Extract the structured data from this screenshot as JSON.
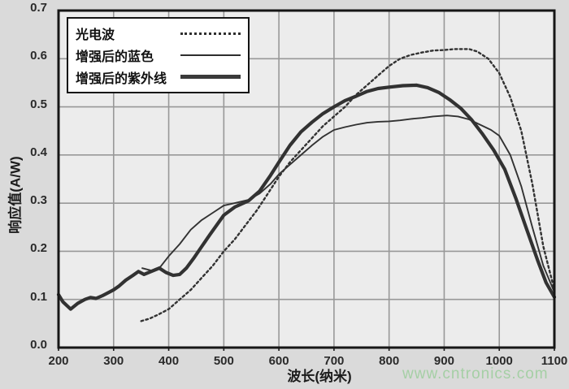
{
  "watermark": {
    "text": "www.cntronics.com",
    "color": "#a5cfa5"
  },
  "colors": {
    "page_bg": "#dadada",
    "plot_bg": "#ececec",
    "grid": "#989898",
    "frame": "#161616",
    "line": "#323232",
    "tick_text": "#2a2a2a"
  },
  "chart_data": {
    "type": "line",
    "title": "",
    "xlabel": "波长(纳米)",
    "ylabel": "响应值(A/W)",
    "xlim": [
      200,
      1100
    ],
    "ylim": [
      0,
      0.7
    ],
    "xticks": [
      200,
      300,
      400,
      500,
      600,
      700,
      800,
      900,
      1000,
      1100
    ],
    "yticks": [
      0.0,
      0.1,
      0.2,
      0.3,
      0.4,
      0.5,
      0.6,
      0.7
    ],
    "grid": true,
    "legend_position": "top-left",
    "series": [
      {
        "name": "光电波",
        "style": "dotted",
        "points": [
          [
            350,
            0.055
          ],
          [
            365,
            0.06
          ],
          [
            380,
            0.068
          ],
          [
            400,
            0.08
          ],
          [
            420,
            0.1
          ],
          [
            440,
            0.12
          ],
          [
            460,
            0.145
          ],
          [
            480,
            0.17
          ],
          [
            500,
            0.2
          ],
          [
            520,
            0.225
          ],
          [
            540,
            0.255
          ],
          [
            560,
            0.285
          ],
          [
            580,
            0.32
          ],
          [
            600,
            0.355
          ],
          [
            620,
            0.385
          ],
          [
            640,
            0.41
          ],
          [
            660,
            0.435
          ],
          [
            680,
            0.46
          ],
          [
            700,
            0.48
          ],
          [
            720,
            0.5
          ],
          [
            740,
            0.525
          ],
          [
            760,
            0.545
          ],
          [
            780,
            0.565
          ],
          [
            800,
            0.585
          ],
          [
            820,
            0.6
          ],
          [
            840,
            0.608
          ],
          [
            860,
            0.613
          ],
          [
            880,
            0.617
          ],
          [
            900,
            0.618
          ],
          [
            920,
            0.62
          ],
          [
            945,
            0.62
          ],
          [
            960,
            0.615
          ],
          [
            980,
            0.6
          ],
          [
            1000,
            0.57
          ],
          [
            1020,
            0.52
          ],
          [
            1040,
            0.45
          ],
          [
            1060,
            0.34
          ],
          [
            1080,
            0.21
          ],
          [
            1100,
            0.12
          ]
        ]
      },
      {
        "name": "增强后的蓝色",
        "style": "thin",
        "points": [
          [
            352,
            0.165
          ],
          [
            368,
            0.16
          ],
          [
            385,
            0.168
          ],
          [
            400,
            0.19
          ],
          [
            420,
            0.215
          ],
          [
            440,
            0.245
          ],
          [
            460,
            0.265
          ],
          [
            480,
            0.28
          ],
          [
            500,
            0.295
          ],
          [
            520,
            0.3
          ],
          [
            545,
            0.307
          ],
          [
            565,
            0.32
          ],
          [
            585,
            0.34
          ],
          [
            600,
            0.36
          ],
          [
            620,
            0.38
          ],
          [
            640,
            0.4
          ],
          [
            660,
            0.42
          ],
          [
            680,
            0.438
          ],
          [
            700,
            0.452
          ],
          [
            720,
            0.458
          ],
          [
            740,
            0.463
          ],
          [
            760,
            0.467
          ],
          [
            780,
            0.469
          ],
          [
            800,
            0.47
          ],
          [
            820,
            0.472
          ],
          [
            840,
            0.475
          ],
          [
            860,
            0.477
          ],
          [
            880,
            0.48
          ],
          [
            905,
            0.482
          ],
          [
            925,
            0.48
          ],
          [
            945,
            0.474
          ],
          [
            965,
            0.463
          ],
          [
            985,
            0.452
          ],
          [
            1000,
            0.44
          ],
          [
            1020,
            0.4
          ],
          [
            1040,
            0.335
          ],
          [
            1060,
            0.25
          ],
          [
            1080,
            0.17
          ],
          [
            1100,
            0.115
          ]
        ]
      },
      {
        "name": "增强后的紫外线",
        "style": "thick",
        "points": [
          [
            200,
            0.11
          ],
          [
            208,
            0.095
          ],
          [
            222,
            0.08
          ],
          [
            235,
            0.092
          ],
          [
            248,
            0.1
          ],
          [
            258,
            0.104
          ],
          [
            268,
            0.102
          ],
          [
            280,
            0.108
          ],
          [
            292,
            0.115
          ],
          [
            300,
            0.12
          ],
          [
            310,
            0.128
          ],
          [
            322,
            0.14
          ],
          [
            335,
            0.15
          ],
          [
            345,
            0.158
          ],
          [
            355,
            0.152
          ],
          [
            368,
            0.158
          ],
          [
            383,
            0.165
          ],
          [
            395,
            0.156
          ],
          [
            408,
            0.15
          ],
          [
            420,
            0.152
          ],
          [
            432,
            0.165
          ],
          [
            445,
            0.185
          ],
          [
            460,
            0.21
          ],
          [
            475,
            0.235
          ],
          [
            500,
            0.275
          ],
          [
            520,
            0.292
          ],
          [
            545,
            0.305
          ],
          [
            565,
            0.325
          ],
          [
            585,
            0.358
          ],
          [
            600,
            0.385
          ],
          [
            620,
            0.42
          ],
          [
            640,
            0.448
          ],
          [
            660,
            0.468
          ],
          [
            680,
            0.486
          ],
          [
            700,
            0.5
          ],
          [
            720,
            0.513
          ],
          [
            740,
            0.522
          ],
          [
            760,
            0.532
          ],
          [
            780,
            0.538
          ],
          [
            800,
            0.541
          ],
          [
            825,
            0.544
          ],
          [
            850,
            0.545
          ],
          [
            870,
            0.54
          ],
          [
            890,
            0.53
          ],
          [
            910,
            0.515
          ],
          [
            930,
            0.497
          ],
          [
            950,
            0.473
          ],
          [
            970,
            0.443
          ],
          [
            990,
            0.41
          ],
          [
            1010,
            0.37
          ],
          [
            1030,
            0.31
          ],
          [
            1050,
            0.245
          ],
          [
            1070,
            0.18
          ],
          [
            1085,
            0.135
          ],
          [
            1100,
            0.105
          ]
        ]
      }
    ]
  }
}
